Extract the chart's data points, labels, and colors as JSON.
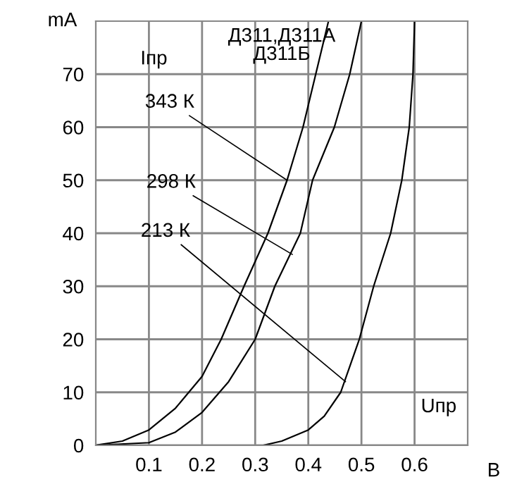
{
  "chart_data": {
    "type": "line",
    "title": "Д311,Д311А\nД311Б",
    "xlabel": "В",
    "ylabel": "mA",
    "series": [
      {
        "color": "#000000",
        "x": [
          0,
          0.05,
          0.1,
          0.15,
          0.2,
          0.236,
          0.279,
          0.324,
          0.36,
          0.39,
          0.414,
          0.438
        ],
        "values": [
          0,
          0.8,
          2.9,
          7,
          13,
          20,
          30,
          40,
          50,
          60,
          70,
          80
        ]
      },
      {
        "color": "#000000",
        "x": [
          0,
          0.1,
          0.15,
          0.2,
          0.25,
          0.3,
          0.337,
          0.385,
          0.408,
          0.449,
          0.478,
          0.5
        ],
        "values": [
          0,
          0.5,
          2.5,
          6.2,
          12,
          20,
          30,
          40,
          50,
          60,
          70,
          80
        ]
      },
      {
        "color": "#000000",
        "x": [
          0.315,
          0.35,
          0.4,
          0.43,
          0.461,
          0.496,
          0.523,
          0.555,
          0.576,
          0.59,
          0.597,
          0.6
        ],
        "values": [
          0,
          0.8,
          2.9,
          5.5,
          10,
          20,
          30,
          40,
          50,
          60,
          70,
          80
        ]
      }
    ],
    "annotations": [
      "Iпр",
      "Uпр",
      {
        "text": "343 К",
        "x": 0.36,
        "y": 50
      },
      {
        "text": "298 К",
        "x": 0.37,
        "y": 36
      },
      {
        "text": "213 К",
        "x": 0.47,
        "y": 12
      }
    ],
    "xlim": [
      0,
      0.7
    ],
    "ylim": [
      0,
      80
    ],
    "xticks": [
      0.1,
      0.2,
      0.3,
      0.4,
      0.5,
      0.6
    ],
    "yticks": [
      0,
      10,
      20,
      30,
      40,
      50,
      60,
      70
    ],
    "grid": true,
    "marker": "none",
    "line_style": "solid"
  }
}
